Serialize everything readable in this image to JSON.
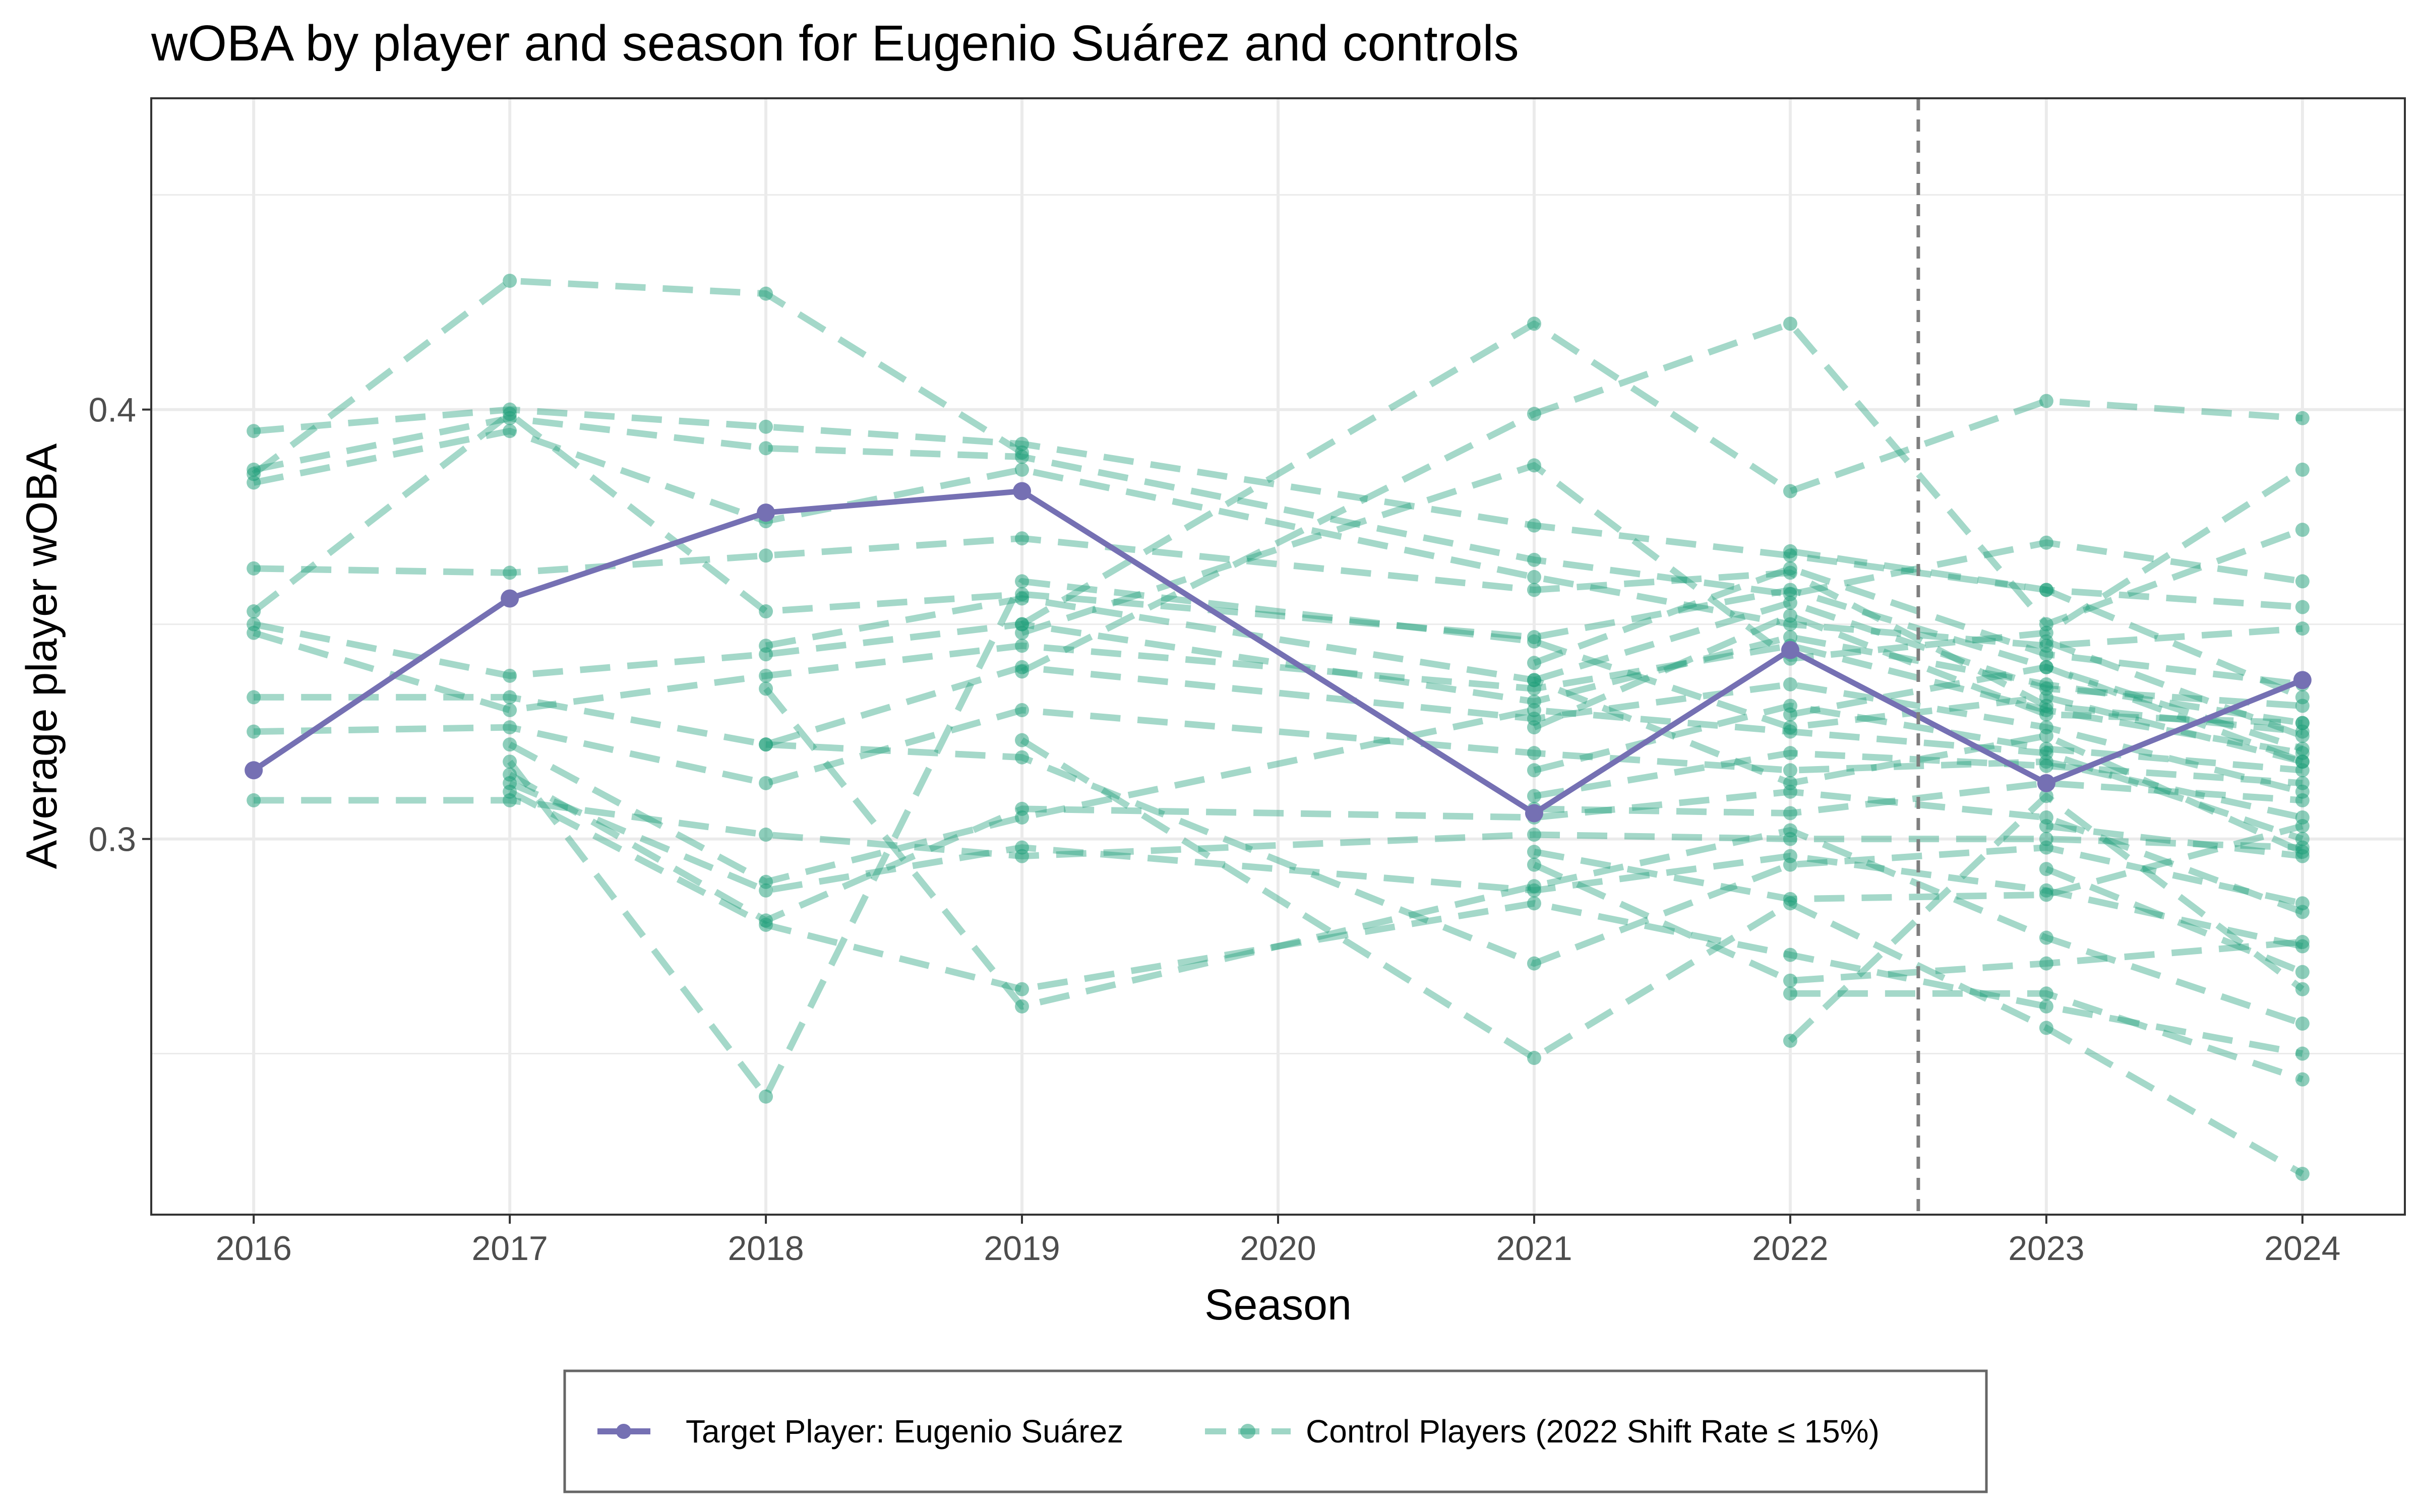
{
  "chart_data": {
    "type": "line",
    "title": "wOBA by player and season for Eugenio Suárez and controls",
    "xlabel": "Season",
    "ylabel": "Average player wOBA",
    "xlim": [
      2015.6,
      2024.4
    ],
    "ylim": [
      0.2125,
      0.4725
    ],
    "x_ticks": [
      "2016",
      "2017",
      "2018",
      "2019",
      "2020",
      "2021",
      "2022",
      "2023",
      "2024"
    ],
    "y_ticks": [
      0.3,
      0.4
    ],
    "y_tick_labels": [
      "0.3",
      "0.4"
    ],
    "grid": true,
    "reference_line": {
      "x": 2022.5,
      "style": "dashed",
      "color": "#7f7f7f"
    },
    "legend_position": "bottom",
    "colors": {
      "target": "#7570b3",
      "control": "#1b9e77"
    },
    "legend": [
      {
        "label": "Target Player: Eugenio Suárez",
        "style": "solid",
        "color": "#7570b3"
      },
      {
        "label": "Control Players (2022 Shift Rate ≤ 15%)",
        "style": "dashed",
        "color": "#1b9e77"
      }
    ],
    "target_series": {
      "name": "Target Player: Eugenio Suárez",
      "x": [
        2016,
        2017,
        2018,
        2019,
        2021,
        2022,
        2023,
        2024
      ],
      "y": [
        0.316,
        0.356,
        0.376,
        0.381,
        0.306,
        0.344,
        0.313,
        0.337
      ]
    },
    "control_series": [
      {
        "x": [
          2016,
          2017,
          2018,
          2019
        ],
        "y": [
          0.385,
          0.43,
          0.427,
          0.39
        ]
      },
      {
        "x": [
          2016,
          2017,
          2018,
          2019,
          2021,
          2022,
          2023,
          2024
        ],
        "y": [
          0.395,
          0.4,
          0.396,
          0.392,
          0.373,
          0.366,
          0.358,
          0.333
        ]
      },
      {
        "x": [
          2016,
          2017,
          2018,
          2019,
          2021,
          2022,
          2023,
          2024
        ],
        "y": [
          0.386,
          0.398,
          0.391,
          0.389,
          0.365,
          0.357,
          0.369,
          0.36
        ]
      },
      {
        "x": [
          2016,
          2017,
          2018,
          2019,
          2021,
          2022,
          2023,
          2024
        ],
        "y": [
          0.383,
          0.395,
          0.374,
          0.386,
          0.361,
          0.35,
          0.345,
          0.349
        ]
      },
      {
        "x": [
          2016,
          2017,
          2018,
          2019,
          2021,
          2022,
          2023,
          2024
        ],
        "y": [
          0.363,
          0.362,
          0.366,
          0.37,
          0.358,
          0.362,
          0.331,
          0.325
        ]
      },
      {
        "x": [
          2016,
          2017,
          2018,
          2019,
          2021,
          2022,
          2023,
          2024
        ],
        "y": [
          0.353,
          0.399,
          0.353,
          0.357,
          0.347,
          0.358,
          0.34,
          0.318
        ]
      },
      {
        "x": [
          2016,
          2017,
          2018,
          2019,
          2021,
          2022,
          2023,
          2024
        ],
        "y": [
          0.35,
          0.338,
          0.343,
          0.35,
          0.332,
          0.347,
          0.336,
          0.327
        ]
      },
      {
        "x": [
          2016,
          2017,
          2018,
          2019,
          2021,
          2022,
          2023,
          2024
        ],
        "y": [
          0.348,
          0.33,
          0.338,
          0.345,
          0.335,
          0.345,
          0.33,
          0.32
        ]
      },
      {
        "x": [
          2016,
          2017,
          2018,
          2019,
          2021,
          2022,
          2023,
          2024
        ],
        "y": [
          0.333,
          0.333,
          0.322,
          0.34,
          0.328,
          0.336,
          0.326,
          0.311
        ]
      },
      {
        "x": [
          2016,
          2017,
          2018,
          2019,
          2021,
          2022,
          2023,
          2024
        ],
        "y": [
          0.325,
          0.326,
          0.313,
          0.33,
          0.32,
          0.316,
          0.318,
          0.305
        ]
      },
      {
        "x": [
          2016,
          2017,
          2018,
          2019,
          2021,
          2022,
          2023,
          2024
        ],
        "y": [
          0.309,
          0.309,
          0.301,
          0.296,
          0.301,
          0.3,
          0.3,
          0.298
        ]
      },
      {
        "x": [
          2017,
          2018,
          2019,
          2021,
          2022,
          2023,
          2024
        ],
        "y": [
          0.313,
          0.288,
          0.298,
          0.288,
          0.296,
          0.288,
          0.275
        ]
      },
      {
        "x": [
          2017,
          2018,
          2019,
          2021,
          2022,
          2023,
          2024
        ],
        "y": [
          0.315,
          0.281,
          0.307,
          0.305,
          0.311,
          0.305,
          0.283
        ]
      },
      {
        "x": [
          2017,
          2018,
          2019,
          2021,
          2022,
          2023,
          2024
        ],
        "y": [
          0.322,
          0.29,
          0.305,
          0.33,
          0.325,
          0.32,
          0.3
        ]
      },
      {
        "x": [
          2017,
          2018,
          2019,
          2021,
          2022,
          2023,
          2024
        ],
        "y": [
          0.318,
          0.24,
          0.36,
          0.346,
          0.326,
          0.333,
          0.318
        ]
      },
      {
        "x": [
          2017,
          2018,
          2019,
          2021,
          2022,
          2023,
          2024
        ],
        "y": [
          0.311,
          0.28,
          0.265,
          0.285,
          0.273,
          0.261,
          0.25
        ]
      },
      {
        "x": [
          2018,
          2019,
          2021,
          2022,
          2023,
          2024
        ],
        "y": [
          0.335,
          0.261,
          0.289,
          0.302,
          0.277,
          0.257
        ]
      },
      {
        "x": [
          2018,
          2019,
          2021,
          2022,
          2023,
          2024
        ],
        "y": [
          0.322,
          0.319,
          0.271,
          0.294,
          0.298,
          0.285
        ]
      },
      {
        "x": [
          2018,
          2019,
          2021,
          2022,
          2023,
          2024
        ],
        "y": [
          0.345,
          0.356,
          0.337,
          0.313,
          0.324,
          0.297
        ]
      },
      {
        "x": [
          2019,
          2021,
          2022,
          2023,
          2024
        ],
        "y": [
          0.35,
          0.42,
          0.381,
          0.402,
          0.398
        ]
      },
      {
        "x": [
          2019,
          2021,
          2022,
          2023,
          2024
        ],
        "y": [
          0.348,
          0.387,
          0.342,
          0.348,
          0.386
        ]
      },
      {
        "x": [
          2019,
          2021,
          2022,
          2023,
          2024
        ],
        "y": [
          0.339,
          0.399,
          0.42,
          0.35,
          0.372
        ]
      },
      {
        "x": [
          2019,
          2021,
          2022,
          2023,
          2024
        ],
        "y": [
          0.323,
          0.249,
          0.285,
          0.256,
          0.222
        ]
      },
      {
        "x": [
          2021,
          2022,
          2023,
          2024
        ],
        "y": [
          0.341,
          0.363,
          0.343,
          0.336
        ]
      },
      {
        "x": [
          2021,
          2022,
          2023,
          2024
        ],
        "y": [
          0.337,
          0.355,
          0.335,
          0.331
        ]
      },
      {
        "x": [
          2021,
          2022,
          2023,
          2024
        ],
        "y": [
          0.326,
          0.352,
          0.329,
          0.327
        ]
      },
      {
        "x": [
          2021,
          2022,
          2023,
          2024
        ],
        "y": [
          0.316,
          0.331,
          0.321,
          0.316
        ]
      },
      {
        "x": [
          2021,
          2022,
          2023,
          2024
        ],
        "y": [
          0.31,
          0.32,
          0.317,
          0.313
        ]
      },
      {
        "x": [
          2021,
          2022,
          2023,
          2024
        ],
        "y": [
          0.307,
          0.306,
          0.313,
          0.309
        ]
      },
      {
        "x": [
          2021,
          2022,
          2023,
          2024
        ],
        "y": [
          0.297,
          0.286,
          0.287,
          0.303
        ]
      },
      {
        "x": [
          2021,
          2022,
          2023,
          2024
        ],
        "y": [
          0.294,
          0.267,
          0.271,
          0.276
        ]
      },
      {
        "x": [
          2022,
          2023,
          2024
        ],
        "y": [
          0.264,
          0.264,
          0.244
        ]
      },
      {
        "x": [
          2022,
          2023,
          2024
        ],
        "y": [
          0.253,
          0.31,
          0.265
        ]
      },
      {
        "x": [
          2022,
          2023,
          2024
        ],
        "y": [
          0.367,
          0.358,
          0.354
        ]
      },
      {
        "x": [
          2022,
          2023,
          2024
        ],
        "y": [
          0.329,
          0.34,
          0.321
        ]
      },
      {
        "x": [
          2023,
          2024
        ],
        "y": [
          0.346,
          0.324
        ]
      },
      {
        "x": [
          2023,
          2024
        ],
        "y": [
          0.303,
          0.296
        ]
      },
      {
        "x": [
          2023,
          2024
        ],
        "y": [
          0.293,
          0.269
        ]
      }
    ]
  }
}
